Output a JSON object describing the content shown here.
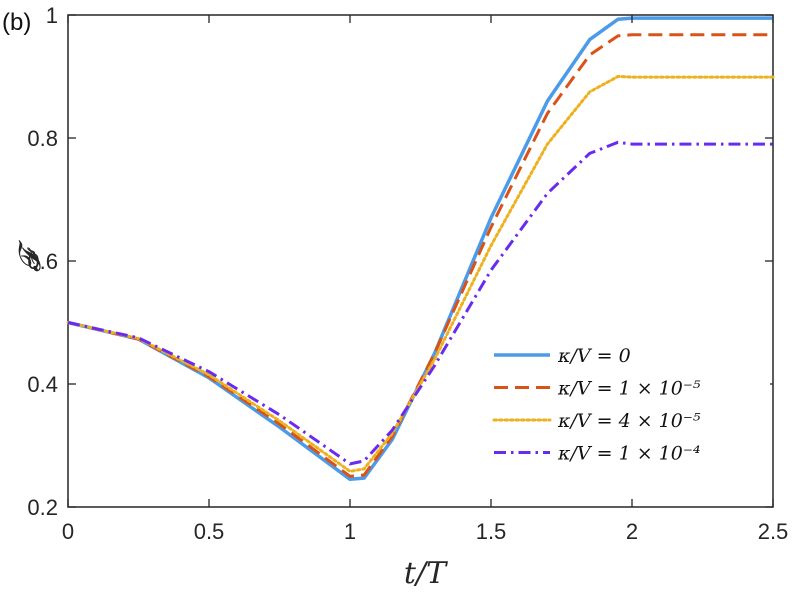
{
  "chart_data": {
    "type": "line",
    "panel_label": "(b)",
    "xlabel": "t/T",
    "ylabel": "𝓕",
    "xlim": [
      0,
      2.5
    ],
    "ylim": [
      0.2,
      1.0
    ],
    "xticks": [
      0,
      0.5,
      1,
      1.5,
      2,
      2.5
    ],
    "xtick_labels": [
      "0",
      "0.5",
      "1",
      "1.5",
      "2",
      "2.5"
    ],
    "yticks": [
      0.2,
      0.4,
      0.6,
      0.8,
      1.0
    ],
    "ytick_labels": [
      "0.2",
      "0.4",
      "0.6",
      "0.8",
      "1"
    ],
    "grid": false,
    "legend_position": "lower-right",
    "series": [
      {
        "name": "κ/V = 0",
        "color": "#4C9BE8",
        "style": "solid",
        "x": [
          0,
          0.25,
          0.5,
          0.75,
          1.0,
          1.05,
          1.15,
          1.3,
          1.5,
          1.7,
          1.85,
          1.95,
          2.0,
          2.5
        ],
        "y": [
          0.5,
          0.473,
          0.41,
          0.33,
          0.245,
          0.247,
          0.31,
          0.45,
          0.67,
          0.86,
          0.96,
          0.993,
          0.995,
          0.995
        ]
      },
      {
        "name": "κ/V = 1 × 10⁻⁵",
        "color": "#D95319",
        "style": "dashed",
        "x": [
          0,
          0.25,
          0.5,
          0.75,
          1.0,
          1.05,
          1.15,
          1.3,
          1.5,
          1.7,
          1.85,
          1.95,
          2.0,
          2.5
        ],
        "y": [
          0.5,
          0.473,
          0.412,
          0.335,
          0.25,
          0.252,
          0.315,
          0.45,
          0.655,
          0.84,
          0.935,
          0.966,
          0.968,
          0.968
        ]
      },
      {
        "name": "κ/V = 4 × 10⁻⁵",
        "color": "#EDB120",
        "style": "dotted",
        "x": [
          0,
          0.25,
          0.5,
          0.75,
          1.0,
          1.05,
          1.15,
          1.3,
          1.5,
          1.7,
          1.85,
          1.95,
          2.0,
          2.5
        ],
        "y": [
          0.5,
          0.474,
          0.415,
          0.34,
          0.258,
          0.262,
          0.32,
          0.44,
          0.625,
          0.79,
          0.875,
          0.9,
          0.899,
          0.899
        ]
      },
      {
        "name": "κ/V = 1 × 10⁻⁴",
        "color": "#6A2BF0",
        "style": "dashdot",
        "x": [
          0,
          0.25,
          0.5,
          0.75,
          1.0,
          1.05,
          1.15,
          1.3,
          1.5,
          1.7,
          1.85,
          1.95,
          2.0,
          2.5
        ],
        "y": [
          0.5,
          0.475,
          0.42,
          0.35,
          0.27,
          0.275,
          0.325,
          0.43,
          0.585,
          0.71,
          0.775,
          0.793,
          0.79,
          0.79
        ]
      }
    ]
  }
}
